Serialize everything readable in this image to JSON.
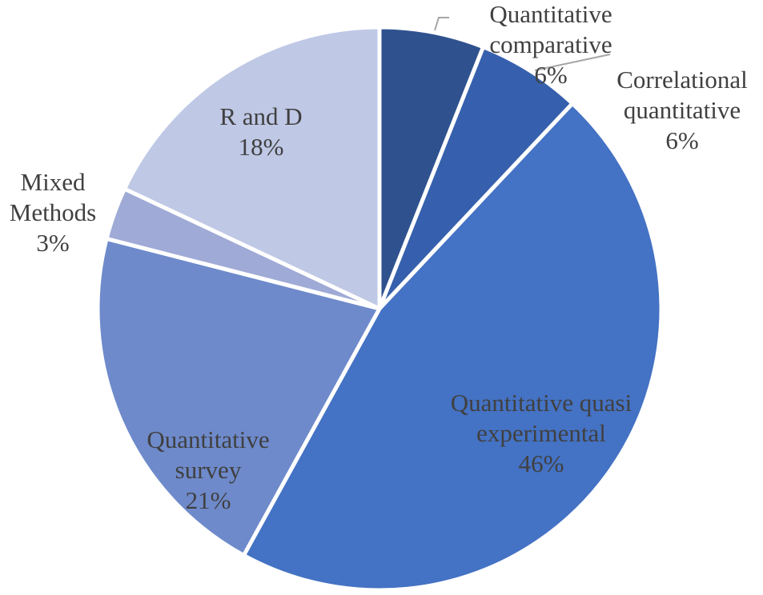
{
  "chart_data": {
    "type": "pie",
    "title": "",
    "slices": [
      {
        "label_lines": [
          "Quantitative",
          "comparative"
        ],
        "value": 6,
        "value_label": "6%",
        "color": "#2f528f"
      },
      {
        "label_lines": [
          "Correlational",
          "quantitative"
        ],
        "value": 6,
        "value_label": "6%",
        "color": "#3660ad"
      },
      {
        "label_lines": [
          "Quantitative quasi",
          "experimental"
        ],
        "value": 46,
        "value_label": "46%",
        "color": "#4472c4"
      },
      {
        "label_lines": [
          "Quantitative",
          "survey"
        ],
        "value": 21,
        "value_label": "21%",
        "color": "#6e8acb"
      },
      {
        "label_lines": [
          "Mixed",
          "Methods"
        ],
        "value": 3,
        "value_label": "3%",
        "color": "#9faad6"
      },
      {
        "label_lines": [
          "R and D"
        ],
        "value": 18,
        "value_label": "18%",
        "color": "#bfc8e5"
      }
    ],
    "colors": {
      "label_text": "#404040",
      "slice_border": "#ffffff",
      "leader_line": "#a6a6a6"
    }
  }
}
